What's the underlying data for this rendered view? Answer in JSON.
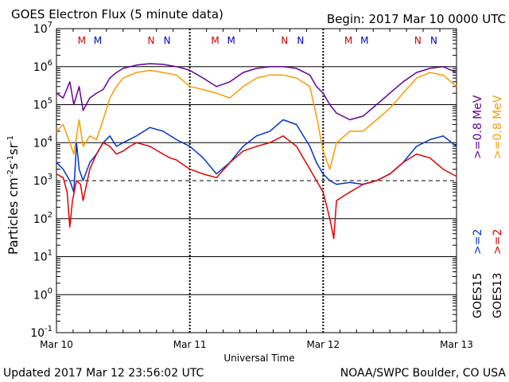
{
  "header": {
    "title": "GOES Electron Flux (5 minute data)",
    "begin": "Begin: 2017 Mar 10 0000 UTC"
  },
  "footer": {
    "updated": "Updated 2017 Mar 12 23:56:02 UTC",
    "credit": "NOAA/SWPC Boulder, CO USA"
  },
  "chart_data": {
    "type": "line",
    "title": "GOES Electron Flux (5 minute data)",
    "xlabel": "Universal Time",
    "ylabel": "Particles cm^-2 s^-1 sr^-1",
    "yscale": "log",
    "ylim": [
      0.1,
      10000000
    ],
    "ytick_labels": [
      {
        "base": "10",
        "exp": "-1"
      },
      {
        "base": "10",
        "exp": "0"
      },
      {
        "base": "10",
        "exp": "1"
      },
      {
        "base": "10",
        "exp": "2"
      },
      {
        "base": "10",
        "exp": "3"
      },
      {
        "base": "10",
        "exp": "4"
      },
      {
        "base": "10",
        "exp": "5"
      },
      {
        "base": "10",
        "exp": "6"
      },
      {
        "base": "10",
        "exp": "7"
      }
    ],
    "x_unit": "days since 2017 Mar 10 0000 UTC",
    "xlim": [
      0,
      3
    ],
    "x_tick_labels": [
      "Mar 10",
      "Mar 11",
      "Mar 12",
      "Mar 13"
    ],
    "threshold_lines": [
      1000
    ],
    "grid": "solid lines at each decade from 10^0 to 10^6; dashed line at 10^3",
    "day_markers": [
      {
        "day": 0,
        "M": [
          "M",
          "M"
        ],
        "N": [
          "N",
          "N"
        ]
      },
      {
        "day": 1,
        "M": [
          "M",
          "M"
        ],
        "N": [
          "N",
          "N"
        ]
      },
      {
        "day": 2,
        "M": [
          "M",
          "M"
        ],
        "N": [
          "N",
          "N"
        ]
      }
    ],
    "marker_colors": [
      "#cc0000",
      "#0000cc"
    ],
    "legend": {
      "placement": "right side, rotated",
      "labels": [
        ">=2",
        ">=0.8 MeV",
        ">=2",
        ">=0.8 MeV",
        "GOES15",
        "GOES13"
      ]
    },
    "series": [
      {
        "name": "GOES15 >=0.8 MeV",
        "color": "#660099",
        "x": [
          0,
          0.05,
          0.1,
          0.13,
          0.17,
          0.2,
          0.25,
          0.3,
          0.35,
          0.4,
          0.45,
          0.5,
          0.6,
          0.7,
          0.8,
          0.9,
          0.95,
          1.0,
          1.1,
          1.2,
          1.3,
          1.4,
          1.5,
          1.6,
          1.7,
          1.8,
          1.9,
          1.95,
          2.0,
          2.05,
          2.1,
          2.2,
          2.3,
          2.4,
          2.5,
          2.6,
          2.7,
          2.8,
          2.9,
          3.0
        ],
        "values": [
          200000,
          150000,
          400000,
          100000,
          300000,
          70000,
          150000,
          200000,
          250000,
          500000,
          700000,
          900000,
          1100000,
          1200000,
          1150000,
          1000000,
          900000,
          800000,
          500000,
          300000,
          400000,
          700000,
          900000,
          1000000,
          1000000,
          900000,
          600000,
          300000,
          200000,
          100000,
          60000,
          40000,
          50000,
          100000,
          200000,
          400000,
          700000,
          900000,
          1000000,
          700000
        ]
      },
      {
        "name": "GOES13 >=0.8 MeV",
        "color": "#ff9900",
        "x": [
          0,
          0.05,
          0.1,
          0.13,
          0.17,
          0.2,
          0.25,
          0.3,
          0.35,
          0.4,
          0.45,
          0.5,
          0.6,
          0.7,
          0.8,
          0.9,
          1.0,
          1.1,
          1.2,
          1.3,
          1.4,
          1.5,
          1.6,
          1.7,
          1.8,
          1.9,
          1.95,
          2.0,
          2.05,
          2.1,
          2.2,
          2.3,
          2.4,
          2.5,
          2.6,
          2.7,
          2.8,
          2.9,
          3.0
        ],
        "values": [
          20000,
          30000,
          10000,
          5000,
          40000,
          8000,
          15000,
          12000,
          40000,
          150000,
          300000,
          500000,
          700000,
          800000,
          700000,
          600000,
          300000,
          250000,
          200000,
          150000,
          300000,
          500000,
          600000,
          600000,
          500000,
          300000,
          50000,
          6000,
          2000,
          10000,
          20000,
          20000,
          40000,
          80000,
          200000,
          500000,
          700000,
          600000,
          300000
        ]
      },
      {
        "name": "GOES15 >=2 MeV",
        "color": "#0033cc",
        "x": [
          0,
          0.05,
          0.1,
          0.13,
          0.15,
          0.17,
          0.2,
          0.25,
          0.3,
          0.35,
          0.4,
          0.45,
          0.5,
          0.6,
          0.7,
          0.8,
          0.9,
          1.0,
          1.1,
          1.2,
          1.3,
          1.4,
          1.5,
          1.6,
          1.7,
          1.8,
          1.9,
          1.95,
          2.0,
          2.05,
          2.1,
          2.2,
          2.3,
          2.4,
          2.5,
          2.6,
          2.7,
          2.8,
          2.9,
          3.0
        ],
        "values": [
          3000,
          2000,
          1000,
          500,
          10000,
          2000,
          1000,
          3000,
          5000,
          10000,
          15000,
          8000,
          10000,
          15000,
          25000,
          20000,
          12000,
          8000,
          4000,
          1500,
          3000,
          8000,
          15000,
          20000,
          40000,
          30000,
          8000,
          3000,
          1500,
          1000,
          800,
          900,
          800,
          1000,
          1500,
          3000,
          8000,
          12000,
          15000,
          8000
        ]
      },
      {
        "name": "GOES13 >=2 MeV",
        "color": "#dd0000",
        "x": [
          0,
          0.05,
          0.08,
          0.1,
          0.12,
          0.15,
          0.18,
          0.2,
          0.25,
          0.3,
          0.35,
          0.4,
          0.45,
          0.5,
          0.55,
          0.6,
          0.7,
          0.8,
          0.85,
          0.9,
          1.0,
          1.1,
          1.2,
          1.3,
          1.4,
          1.5,
          1.6,
          1.7,
          1.8,
          1.9,
          1.95,
          2.0,
          2.05,
          2.08,
          2.1,
          2.2,
          2.3,
          2.4,
          2.5,
          2.6,
          2.7,
          2.8,
          2.9,
          3.0
        ],
        "values": [
          1500,
          1200,
          500,
          60,
          300,
          1000,
          800,
          300,
          2000,
          5000,
          10000,
          8000,
          5000,
          6000,
          8000,
          10000,
          8000,
          5000,
          4000,
          3500,
          2000,
          1500,
          1200,
          3000,
          6000,
          8000,
          10000,
          15000,
          8000,
          2000,
          1000,
          500,
          100,
          30,
          300,
          500,
          800,
          1000,
          1500,
          3000,
          5000,
          4000,
          2000,
          1300
        ]
      }
    ]
  }
}
